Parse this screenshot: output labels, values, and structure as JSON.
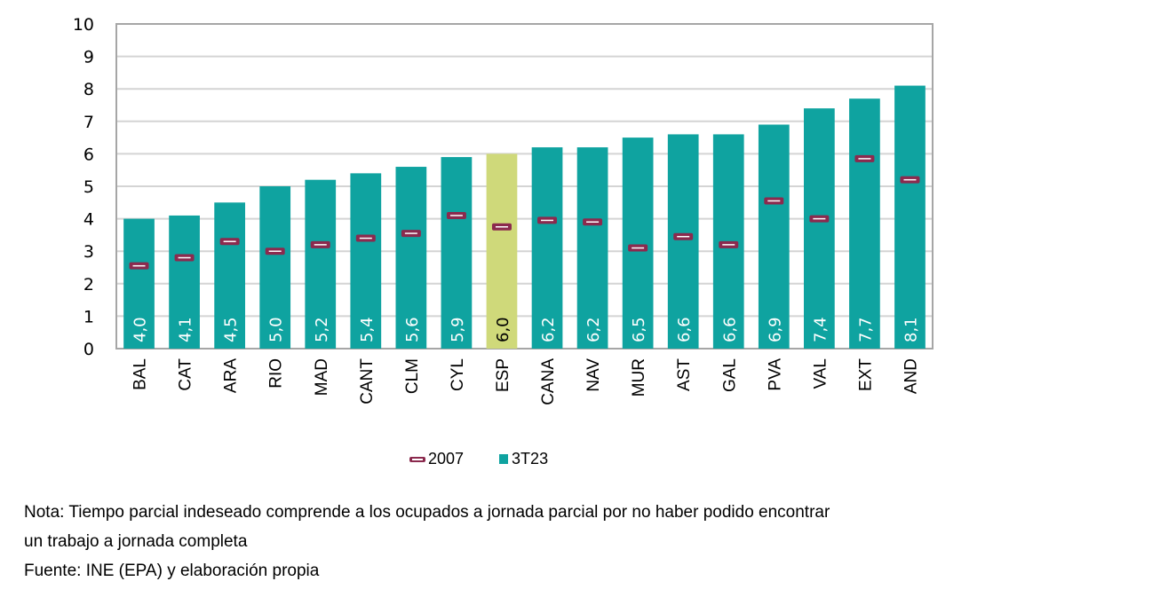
{
  "chart_data": {
    "type": "bar",
    "title": "",
    "xlabel": "",
    "ylabel": "",
    "ylim": [
      0,
      10
    ],
    "yticks": [
      "0",
      "1",
      "2",
      "3",
      "4",
      "5",
      "6",
      "7",
      "8",
      "9",
      "10"
    ],
    "grid": true,
    "legend_position": "bottom-center",
    "categories": [
      "BAL",
      "CAT",
      "ARA",
      "RIO",
      "MAD",
      "CANT",
      "CLM",
      "CYL",
      "ESP",
      "CANA",
      "NAV",
      "MUR",
      "AST",
      "GAL",
      "PVA",
      "VAL",
      "EXT",
      "AND"
    ],
    "highlight_category": "ESP",
    "series": [
      {
        "name": "3T23",
        "kind": "bar",
        "color": "#0fa3a0",
        "highlight_color": "#cfd97a",
        "values": [
          4.0,
          4.1,
          4.5,
          5.0,
          5.2,
          5.4,
          5.6,
          5.9,
          6.0,
          6.2,
          6.2,
          6.5,
          6.6,
          6.6,
          6.9,
          7.4,
          7.7,
          8.1
        ],
        "labels": [
          "4,0",
          "4,1",
          "4,5",
          "5,0",
          "5,2",
          "5,4",
          "5,6",
          "5,9",
          "6,0",
          "6,2",
          "6,2",
          "6,5",
          "6,6",
          "6,6",
          "6,9",
          "7,4",
          "7,7",
          "8,1"
        ]
      },
      {
        "name": "2007",
        "kind": "marker",
        "color": "#8b2a4e",
        "values": [
          2.55,
          2.8,
          3.3,
          3.0,
          3.2,
          3.4,
          3.55,
          4.1,
          3.75,
          3.95,
          3.9,
          3.1,
          3.45,
          3.2,
          4.55,
          4.0,
          5.85,
          5.2
        ]
      }
    ],
    "legend": [
      "2007",
      "3T23"
    ]
  },
  "notes": {
    "line1": "Nota: Tiempo parcial indeseado comprende a los ocupados a jornada parcial por no haber podido encontrar",
    "line2": "un trabajo a jornada completa",
    "source": "Fuente: INE (EPA) y elaboración propia"
  }
}
